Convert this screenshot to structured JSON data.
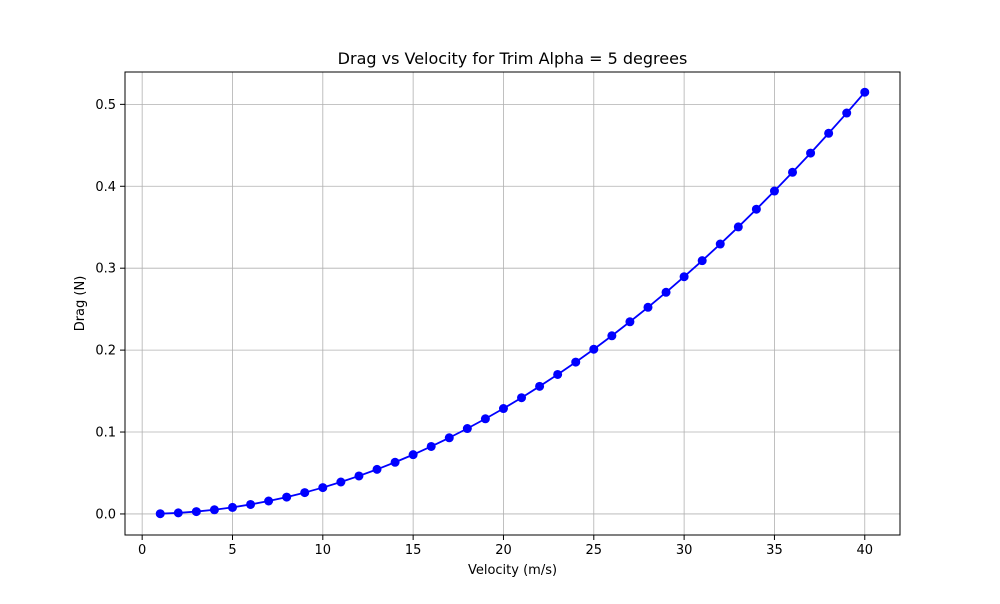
{
  "chart_data": {
    "type": "line",
    "title": "Drag vs Velocity for Trim Alpha = 5 degrees",
    "xlabel": "Velocity (m/s)",
    "ylabel": "Drag (N)",
    "xlim": [
      -0.95,
      41.95
    ],
    "ylim": [
      -0.0257,
      0.5395
    ],
    "x_ticks": [
      0,
      5,
      10,
      15,
      20,
      25,
      30,
      35,
      40
    ],
    "y_ticks": [
      0.0,
      0.1,
      0.2,
      0.3,
      0.4,
      0.5
    ],
    "x_tick_labels": [
      "0",
      "5",
      "10",
      "15",
      "20",
      "25",
      "30",
      "35",
      "40"
    ],
    "y_tick_labels": [
      "0.0",
      "0.1",
      "0.2",
      "0.3",
      "0.4",
      "0.5"
    ],
    "grid": true,
    "series": [
      {
        "color": "#0000ff",
        "marker": "circle",
        "x": [
          1,
          2,
          3,
          4,
          5,
          6,
          7,
          8,
          9,
          10,
          11,
          12,
          13,
          14,
          15,
          16,
          17,
          18,
          19,
          20,
          21,
          22,
          23,
          24,
          25,
          26,
          27,
          28,
          29,
          30,
          31,
          32,
          33,
          34,
          35,
          36,
          37,
          38,
          39,
          40
        ],
        "y": [
          0.0003,
          0.0013,
          0.0029,
          0.0051,
          0.008,
          0.0116,
          0.0158,
          0.0206,
          0.0261,
          0.0322,
          0.039,
          0.0464,
          0.0544,
          0.0631,
          0.0724,
          0.0824,
          0.093,
          0.1043,
          0.1162,
          0.1287,
          0.1419,
          0.1558,
          0.1703,
          0.1854,
          0.2011,
          0.2175,
          0.2346,
          0.2523,
          0.2706,
          0.2896,
          0.3092,
          0.3295,
          0.3504,
          0.372,
          0.3942,
          0.4171,
          0.4405,
          0.4647,
          0.4894,
          0.5148
        ]
      }
    ]
  }
}
